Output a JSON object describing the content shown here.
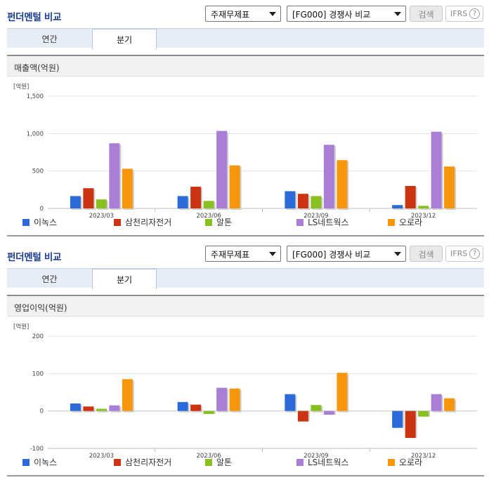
{
  "panels": [
    {
      "title": "펀더멘털 비교",
      "select_statement": "주재무제표",
      "select_compare": "[FG000] 경쟁사 비교",
      "search_label": "검색",
      "ifrs_label": "IFRS",
      "help_symbol": "?",
      "tabs": [
        {
          "label": "연간",
          "active": false
        },
        {
          "label": "분기",
          "active": true
        }
      ],
      "chart_title": "매출액(억원)"
    },
    {
      "title": "펀더멘털 비교",
      "select_statement": "주재무제표",
      "select_compare": "[FG000] 경쟁사 비교",
      "search_label": "검색",
      "ifrs_label": "IFRS",
      "help_symbol": "?",
      "tabs": [
        {
          "label": "연간",
          "active": false
        },
        {
          "label": "분기",
          "active": true
        }
      ],
      "chart_title": "영업이익(억원)"
    }
  ],
  "chart_data": [
    {
      "type": "bar",
      "title": "매출액(억원)",
      "unit_label": "[억원]",
      "categories": [
        "2023/03",
        "2023/06",
        "2023/09",
        "2023/12"
      ],
      "ylim": [
        0,
        1500
      ],
      "yticks": [
        0,
        500,
        1000,
        1500
      ],
      "ytick_labels": [
        "0",
        "500",
        "1,000",
        "1,500"
      ],
      "grid": true,
      "legend_position": "bottom",
      "series": [
        {
          "name": "이녹스",
          "color": "#2b6ad8",
          "values": [
            165,
            165,
            230,
            45
          ]
        },
        {
          "name": "삼천리자전거",
          "color": "#cc3311",
          "values": [
            270,
            290,
            195,
            300
          ]
        },
        {
          "name": "알톤",
          "color": "#88c020",
          "values": [
            120,
            100,
            165,
            35
          ]
        },
        {
          "name": "LS네트웍스",
          "color": "#a97ed6",
          "values": [
            870,
            1035,
            850,
            1025
          ]
        },
        {
          "name": "오로라",
          "color": "#f7960a",
          "values": [
            530,
            575,
            645,
            560
          ]
        }
      ]
    },
    {
      "type": "bar",
      "title": "영업이익(억원)",
      "unit_label": "[억원]",
      "categories": [
        "2023/03",
        "2023/06",
        "2023/09",
        "2023/12"
      ],
      "ylim": [
        -100,
        200
      ],
      "yticks": [
        -100,
        0,
        100,
        200
      ],
      "ytick_labels": [
        "-100",
        "0",
        "100",
        "200"
      ],
      "grid": true,
      "legend_position": "bottom",
      "series": [
        {
          "name": "이녹스",
          "color": "#2b6ad8",
          "values": [
            20,
            24,
            45,
            -45
          ]
        },
        {
          "name": "삼천리자전거",
          "color": "#cc3311",
          "values": [
            12,
            17,
            -28,
            -72
          ]
        },
        {
          "name": "알톤",
          "color": "#88c020",
          "values": [
            6,
            -8,
            16,
            -15
          ]
        },
        {
          "name": "LS네트웍스",
          "color": "#a97ed6",
          "values": [
            15,
            62,
            -10,
            45
          ]
        },
        {
          "name": "오로라",
          "color": "#f7960a",
          "values": [
            85,
            60,
            102,
            34
          ]
        }
      ]
    }
  ]
}
